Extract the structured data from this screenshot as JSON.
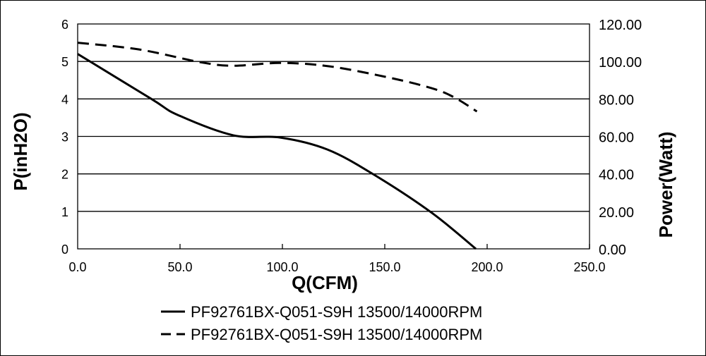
{
  "chart_data": {
    "type": "line",
    "xlabel": "Q(CFM)",
    "ylabel": "P(inH2O)",
    "y2label": "Power(Watt)",
    "xlim": [
      0,
      250
    ],
    "ylim": [
      0,
      6
    ],
    "y2lim": [
      0,
      120
    ],
    "xticks": [
      "0.0",
      "50.0",
      "100.0",
      "150.0",
      "200.0",
      "250.0"
    ],
    "yticks": [
      "0",
      "1",
      "2",
      "3",
      "4",
      "5",
      "6"
    ],
    "y2ticks": [
      "0.00",
      "20.00",
      "40.00",
      "60.00",
      "80.00",
      "100.00",
      "120.00"
    ],
    "grid": "horizontal",
    "legend_position": "bottom",
    "series": [
      {
        "name": "PF92761BX-Q051-S9H 13500/14000RPM",
        "axis": "left",
        "style": "solid",
        "x": [
          0,
          36,
          49,
          76,
          99,
          122,
          145,
          173,
          194.5
        ],
        "y": [
          5.2,
          4.0,
          3.57,
          3.03,
          2.97,
          2.65,
          1.97,
          0.96,
          0
        ]
      },
      {
        "name": "PF92761BX-Q051-S9H 13500/14000RPM",
        "axis": "right",
        "style": "dashed",
        "x": [
          0,
          30,
          60,
          76,
          99,
          123,
          152,
          173,
          184,
          195
        ],
        "y": [
          110,
          106.4,
          99.6,
          97.7,
          99.2,
          97.4,
          91.4,
          85.7,
          80.8,
          73.3
        ]
      }
    ]
  }
}
